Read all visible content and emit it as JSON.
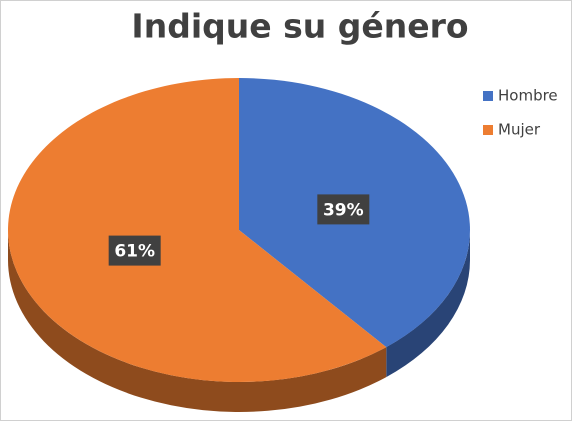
{
  "chart_data": {
    "type": "pie",
    "title": "Indique su género",
    "categories": [
      "Hombre",
      "Mujer"
    ],
    "values": [
      39,
      61
    ],
    "value_labels": [
      "39%",
      "61%"
    ],
    "colors": [
      "#4472c4",
      "#ed7d31"
    ],
    "legend": "right"
  }
}
